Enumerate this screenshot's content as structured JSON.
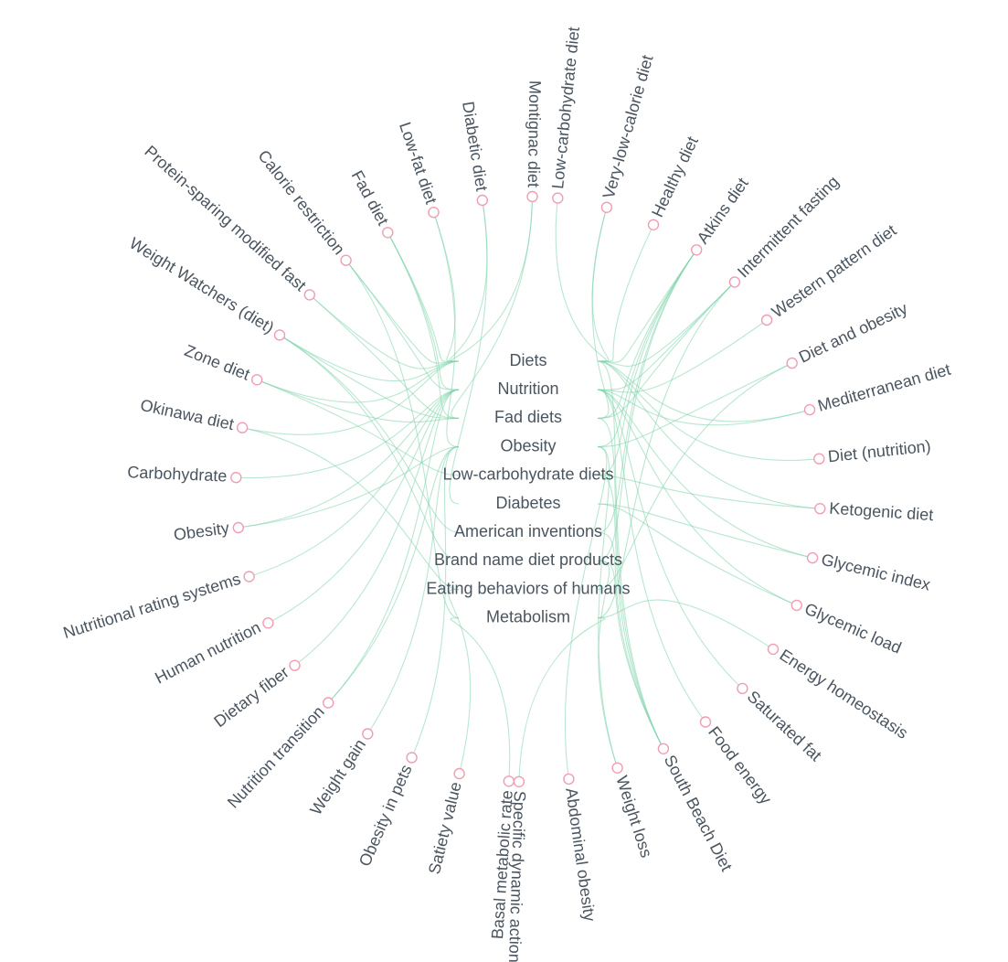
{
  "colors": {
    "link": "#7dd3a9",
    "node_stroke": "#f29cb4",
    "text": "#4a5560",
    "background": "#ffffff"
  },
  "categories": [
    "Diets",
    "Nutrition",
    "Fad diets",
    "Obesity",
    "Low-carbohydrate diets",
    "Diabetes",
    "American inventions",
    "Brand name diet products",
    "Eating behaviors of humans",
    "Metabolism"
  ],
  "left_nodes": [
    {
      "label": "Montignac diet",
      "cats": [
        0,
        2
      ]
    },
    {
      "label": "Diabetic diet",
      "cats": [
        0,
        5
      ]
    },
    {
      "label": "Low-fat diet",
      "cats": [
        0,
        3
      ]
    },
    {
      "label": "Fad diet",
      "cats": [
        0,
        1,
        2
      ]
    },
    {
      "label": "Calorie restriction",
      "cats": [
        0,
        1,
        9
      ]
    },
    {
      "label": "Protein-sparing modified fast",
      "cats": [
        0,
        2
      ]
    },
    {
      "label": "Weight Watchers (diet)",
      "cats": [
        0,
        2,
        6,
        7
      ]
    },
    {
      "label": "Zone diet",
      "cats": [
        0,
        2,
        4
      ]
    },
    {
      "label": "Okinawa diet",
      "cats": [
        0,
        8
      ]
    },
    {
      "label": "Carbohydrate",
      "cats": [
        1
      ]
    },
    {
      "label": "Obesity",
      "cats": [
        1,
        3
      ]
    },
    {
      "label": "Nutritional rating systems",
      "cats": [
        1
      ]
    },
    {
      "label": "Human nutrition",
      "cats": [
        1
      ]
    },
    {
      "label": "Dietary fiber",
      "cats": [
        1
      ]
    },
    {
      "label": "Nutrition transition",
      "cats": [
        1,
        3
      ]
    },
    {
      "label": "Weight gain",
      "cats": [
        3
      ]
    },
    {
      "label": "Obesity in pets",
      "cats": [
        3
      ]
    },
    {
      "label": "Satiety value",
      "cats": [
        8
      ]
    },
    {
      "label": "Basal metabolic rate",
      "cats": [
        9
      ]
    }
  ],
  "right_nodes": [
    {
      "label": "Low-carbohydrate diet",
      "cats": [
        0
      ]
    },
    {
      "label": "Very-low-calorie diet",
      "cats": [
        0,
        2
      ]
    },
    {
      "label": "Healthy diet",
      "cats": [
        0
      ]
    },
    {
      "label": "Atkins diet",
      "cats": [
        0,
        2,
        3,
        4,
        6,
        7
      ]
    },
    {
      "label": "Intermittent fasting",
      "cats": [
        0,
        1,
        2,
        9
      ]
    },
    {
      "label": "Western pattern diet",
      "cats": [
        1
      ]
    },
    {
      "label": "Diet and obesity",
      "cats": [
        3,
        8
      ]
    },
    {
      "label": "Mediterranean diet",
      "cats": [
        0,
        1
      ]
    },
    {
      "label": "Diet (nutrition)",
      "cats": [
        0
      ]
    },
    {
      "label": "Ketogenic diet",
      "cats": [
        0,
        4
      ]
    },
    {
      "label": "Glycemic index",
      "cats": [
        1,
        5
      ]
    },
    {
      "label": "Glycemic load",
      "cats": [
        1,
        5
      ]
    },
    {
      "label": "Energy homeostasis",
      "cats": [
        9
      ]
    },
    {
      "label": "Saturated fat",
      "cats": [
        1
      ]
    },
    {
      "label": "Food energy",
      "cats": [
        1
      ]
    },
    {
      "label": "South Beach Diet",
      "cats": [
        0,
        2,
        4,
        6,
        7
      ]
    },
    {
      "label": "Weight loss",
      "cats": [
        3,
        7
      ]
    },
    {
      "label": "Abdominal obesity",
      "cats": [
        3
      ]
    },
    {
      "label": "Specific dynamic action",
      "cats": [
        9
      ]
    }
  ]
}
